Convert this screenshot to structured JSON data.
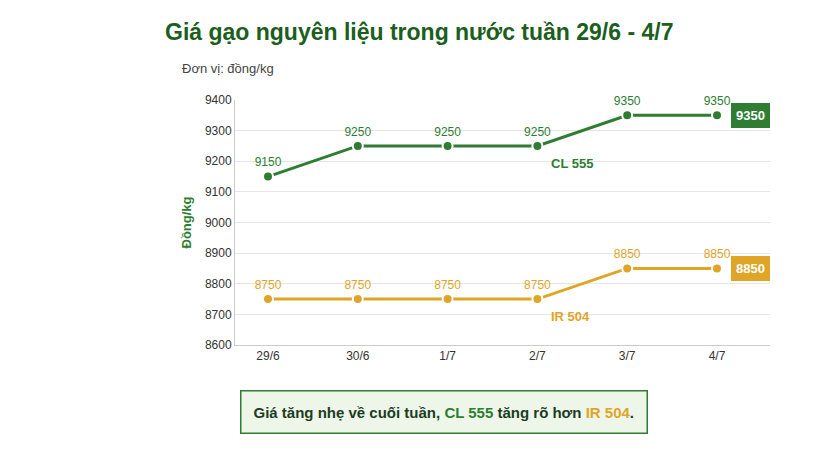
{
  "chart_data": {
    "type": "line",
    "title": "Giá gạo nguyên liệu trong nước tuần 29/6 - 4/7",
    "subtitle": "Đơn vị: đồng/kg",
    "y_label": "Đồng/kg",
    "annotations": [
      "Giá tăng nhẹ về cuối tuần, CL 555 tăng rõ hơn IR 504."
    ],
    "categories": [
      "29/6",
      "30/6",
      "1/7",
      "2/7",
      "3/7",
      "4/7"
    ],
    "series": [
      {
        "name": "CL 555",
        "color": "#2e7d32",
        "values": [
          9150,
          9250,
          9250,
          9250,
          9350,
          9350
        ]
      },
      {
        "name": "IR 504",
        "color": "#e0a526",
        "values": [
          8750,
          8750,
          8750,
          8750,
          8850,
          8850
        ]
      }
    ],
    "ylim": [
      8600,
      9400
    ],
    "yticks": [
      8600,
      8700,
      8800,
      8900,
      9000,
      9100,
      9200,
      9300,
      9400
    ],
    "grid": true,
    "data_labels": true,
    "marker": "circle"
  }
}
